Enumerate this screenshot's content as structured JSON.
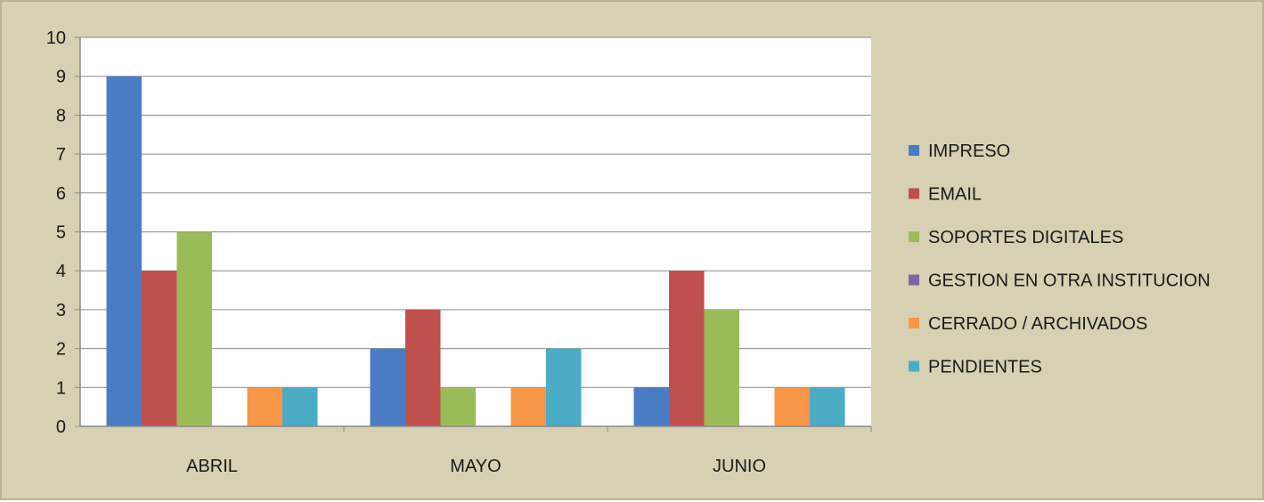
{
  "chart_data": {
    "type": "bar",
    "categories": [
      "ABRIL",
      "MAYO",
      "JUNIO"
    ],
    "series": [
      {
        "name": "IMPRESO",
        "values": [
          9,
          2,
          1
        ],
        "color": "#4a7cc4"
      },
      {
        "name": "EMAIL",
        "values": [
          4,
          3,
          4
        ],
        "color": "#c0504d"
      },
      {
        "name": "SOPORTES DIGITALES",
        "values": [
          5,
          1,
          3
        ],
        "color": "#9bbb59"
      },
      {
        "name": "GESTION EN OTRA INSTITUCION",
        "values": [
          0,
          0,
          0
        ],
        "color": "#7f64a2"
      },
      {
        "name": "CERRADO / ARCHIVADOS",
        "values": [
          1,
          1,
          1
        ],
        "color": "#f79646"
      },
      {
        "name": "PENDIENTES",
        "values": [
          1,
          2,
          1
        ],
        "color": "#4bacc6"
      }
    ],
    "yticks": [
      0,
      1,
      2,
      3,
      4,
      5,
      6,
      7,
      8,
      9,
      10
    ],
    "ylim": [
      0,
      10
    ],
    "title": "",
    "xlabel": "",
    "ylabel": "",
    "grid": true,
    "legend_position": "right"
  }
}
